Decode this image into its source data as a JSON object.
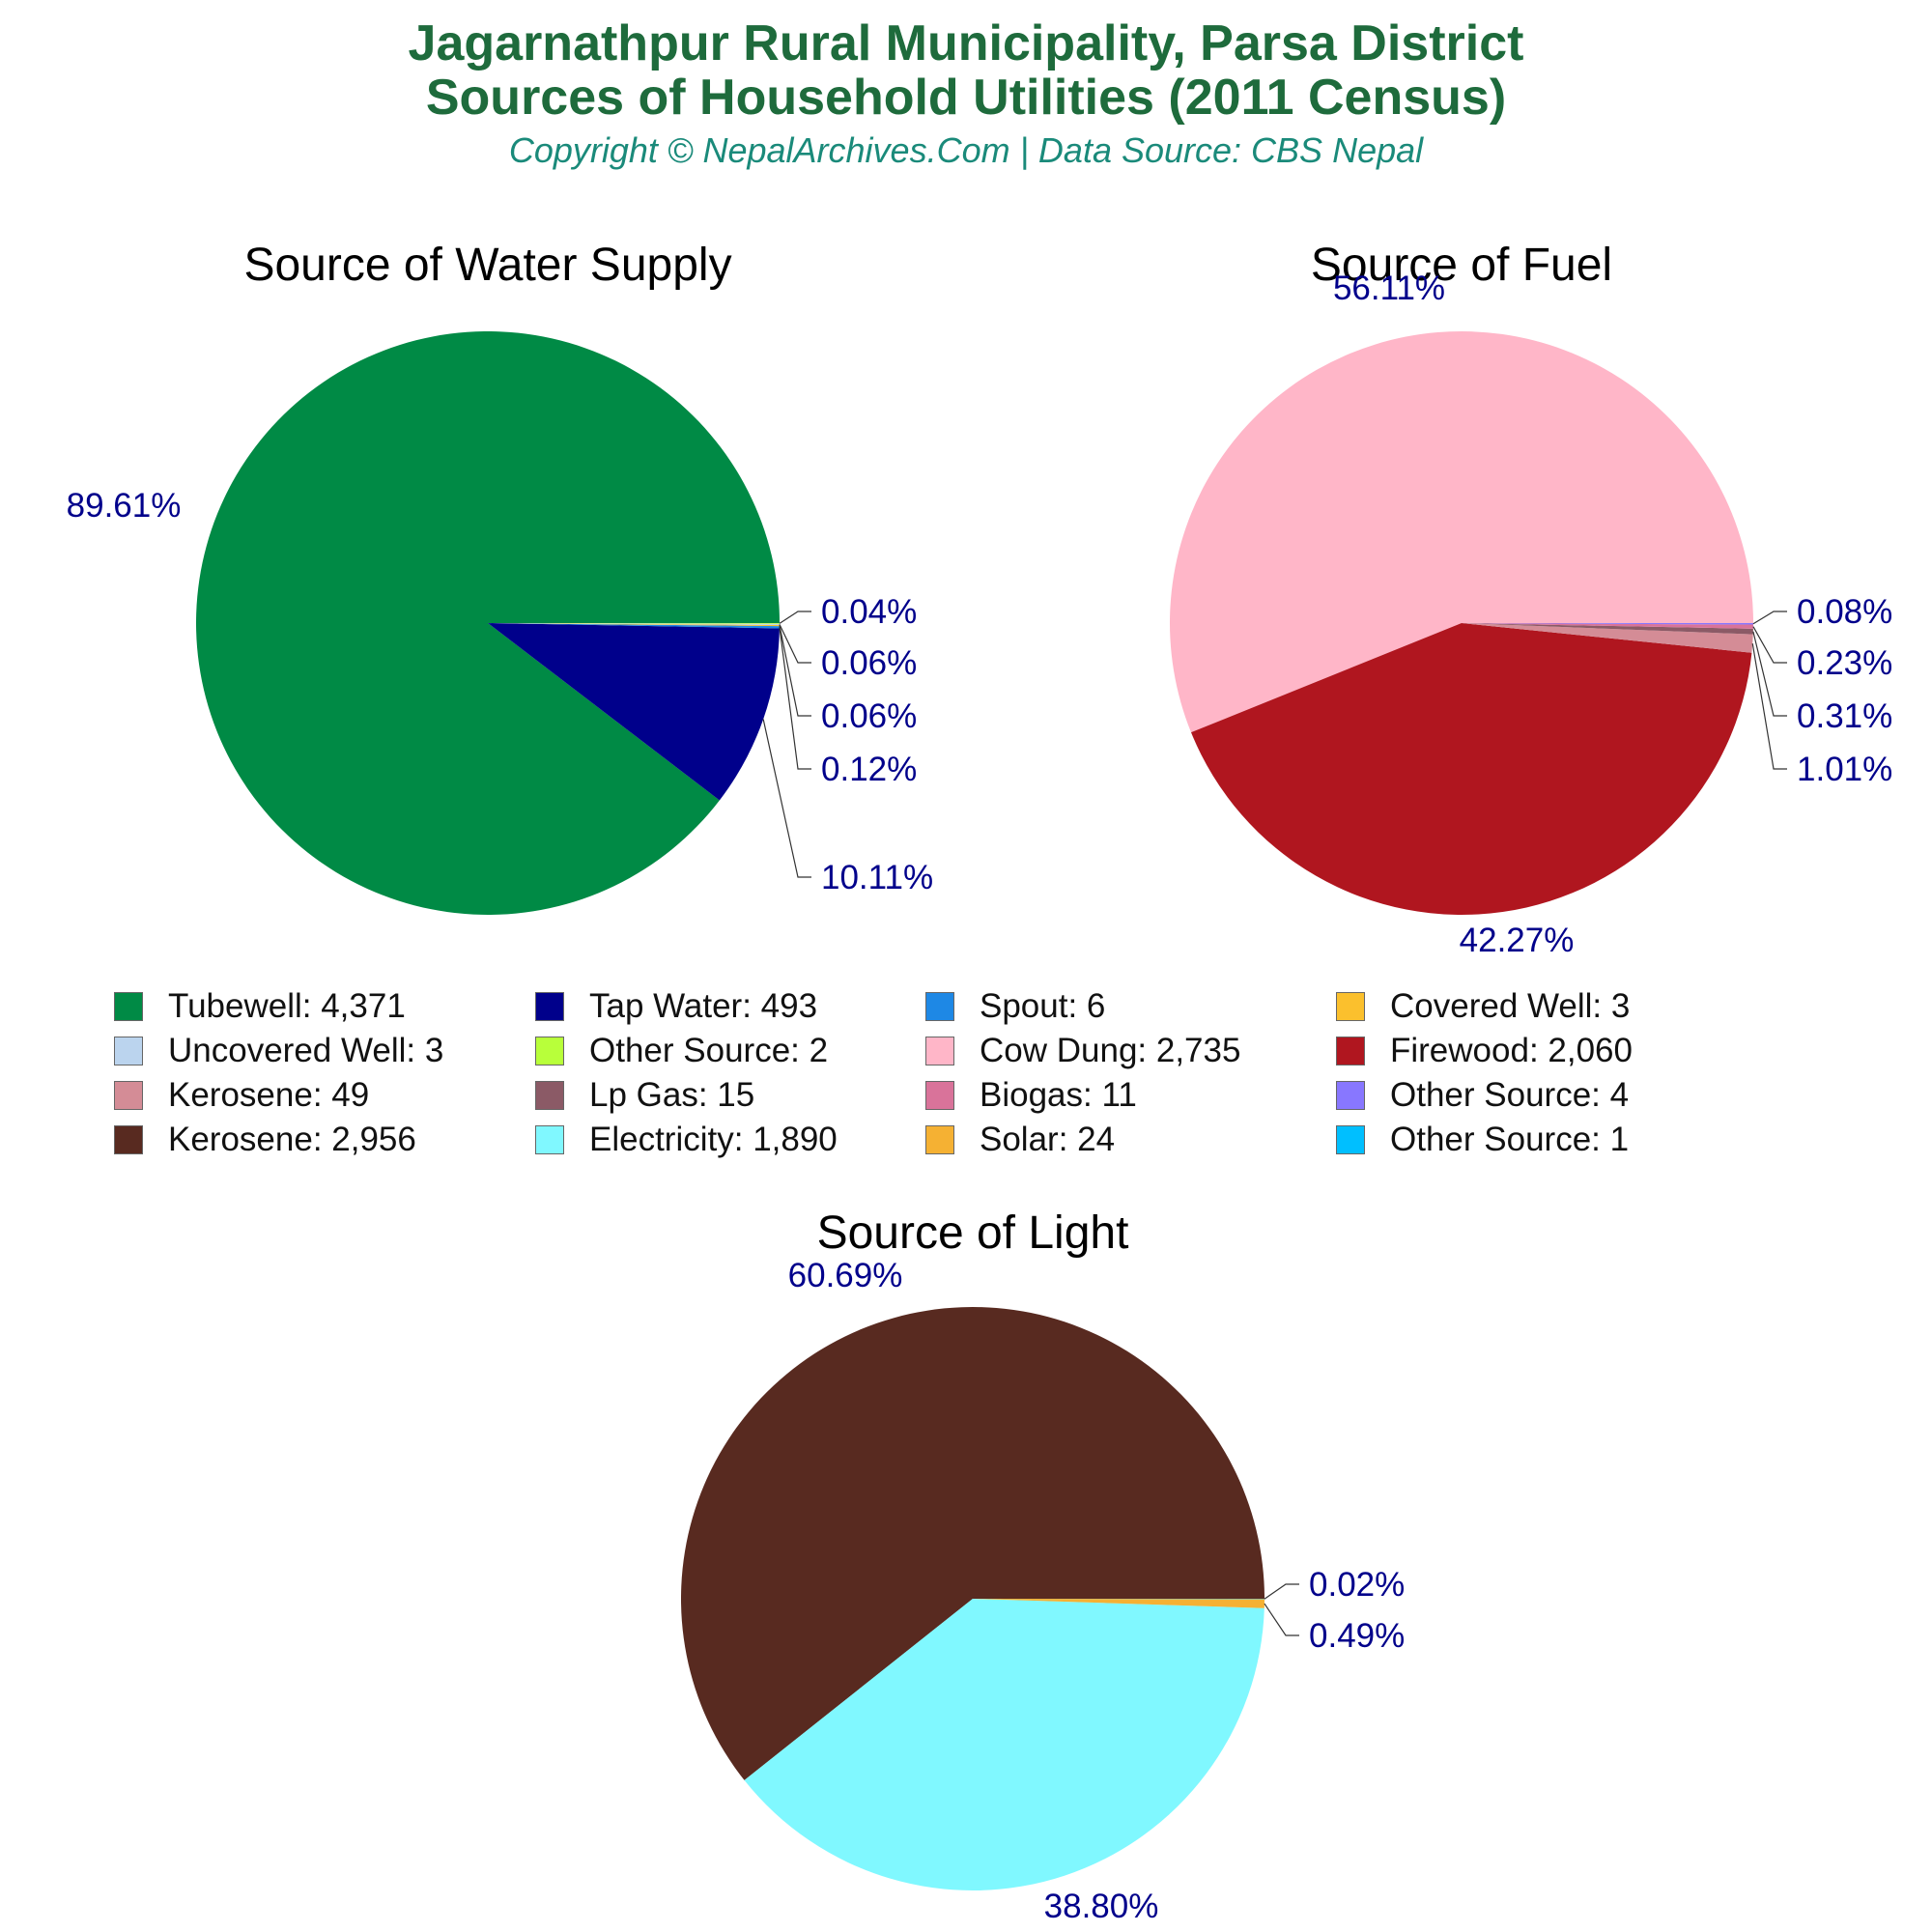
{
  "header": {
    "title_line1": "Jagarnathpur Rural Municipality, Parsa District",
    "title_line2": "Sources of Household Utilities (2011 Census)",
    "subtitle": "Copyright © NepalArchives.Com | Data Source: CBS Nepal"
  },
  "colors": {
    "title": "#1e6b3c",
    "subtitle": "#1a8a7a",
    "pct_label": "#00008b"
  },
  "chart_data": [
    {
      "type": "pie",
      "title": "Source of Water Supply",
      "slices": [
        {
          "name": "Tubewell",
          "value": 4371,
          "pct": "89.61%",
          "color": "#008a45"
        },
        {
          "name": "Tap Water",
          "value": 493,
          "pct": "10.11%",
          "color": "#00008b"
        },
        {
          "name": "Spout",
          "value": 6,
          "pct": "0.12%",
          "color": "#1e88e5"
        },
        {
          "name": "Covered Well",
          "value": 3,
          "pct": "0.06%",
          "color": "#fbc02d"
        },
        {
          "name": "Uncovered Well",
          "value": 3,
          "pct": "0.06%",
          "color": "#bbd4ee"
        },
        {
          "name": "Other Source",
          "value": 2,
          "pct": "0.04%",
          "color": "#b8ff3a"
        }
      ]
    },
    {
      "type": "pie",
      "title": "Source of Fuel",
      "slices": [
        {
          "name": "Cow Dung",
          "value": 2735,
          "pct": "56.11%",
          "color": "#ffb6c8"
        },
        {
          "name": "Firewood",
          "value": 2060,
          "pct": "42.27%",
          "color": "#b0161f"
        },
        {
          "name": "Kerosene",
          "value": 49,
          "pct": "1.01%",
          "color": "#d48c96"
        },
        {
          "name": "Lp Gas",
          "value": 15,
          "pct": "0.31%",
          "color": "#8b5a66"
        },
        {
          "name": "Biogas",
          "value": 11,
          "pct": "0.23%",
          "color": "#d9739a"
        },
        {
          "name": "Other Source",
          "value": 4,
          "pct": "0.08%",
          "color": "#8877ff"
        }
      ]
    },
    {
      "type": "pie",
      "title": "Source of Light",
      "slices": [
        {
          "name": "Kerosene",
          "value": 2956,
          "pct": "60.69%",
          "color": "#582a20"
        },
        {
          "name": "Electricity",
          "value": 1890,
          "pct": "38.80%",
          "color": "#80f8ff"
        },
        {
          "name": "Solar",
          "value": 24,
          "pct": "0.49%",
          "color": "#f5b133"
        },
        {
          "name": "Other Source",
          "value": 1,
          "pct": "0.02%",
          "color": "#00bfff"
        }
      ]
    }
  ],
  "legend": [
    {
      "label": "Tubewell: 4,371",
      "color": "#008a45"
    },
    {
      "label": "Tap Water: 493",
      "color": "#00008b"
    },
    {
      "label": "Spout: 6",
      "color": "#1e88e5"
    },
    {
      "label": "Covered Well: 3",
      "color": "#fbc02d"
    },
    {
      "label": "Uncovered Well: 3",
      "color": "#bbd4ee"
    },
    {
      "label": "Other Source: 2",
      "color": "#b8ff3a"
    },
    {
      "label": "Cow Dung: 2,735",
      "color": "#ffb6c8"
    },
    {
      "label": "Firewood: 2,060",
      "color": "#b0161f"
    },
    {
      "label": "Kerosene: 49",
      "color": "#d48c96"
    },
    {
      "label": "Lp Gas: 15",
      "color": "#8b5a66"
    },
    {
      "label": "Biogas: 11",
      "color": "#d9739a"
    },
    {
      "label": "Other Source: 4",
      "color": "#8877ff"
    },
    {
      "label": "Kerosene: 2,956",
      "color": "#582a20"
    },
    {
      "label": "Electricity: 1,890",
      "color": "#80f8ff"
    },
    {
      "label": "Solar: 24",
      "color": "#f5b133"
    },
    {
      "label": "Other Source: 1",
      "color": "#00bfff"
    }
  ]
}
